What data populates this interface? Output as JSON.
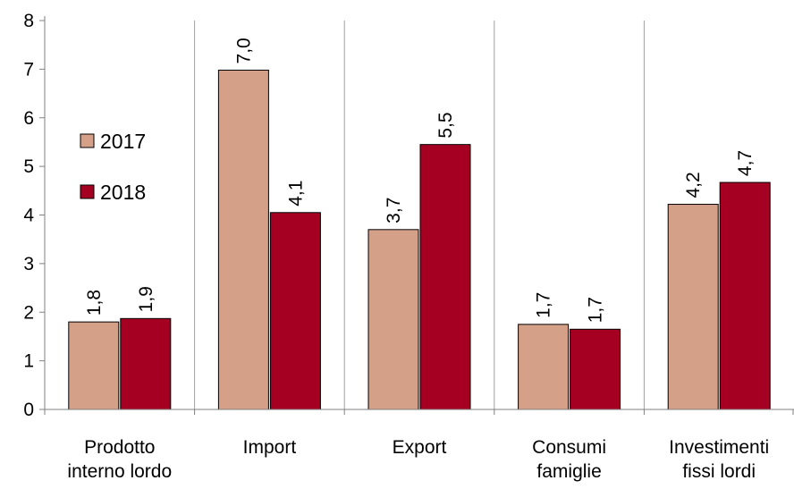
{
  "chart_data": {
    "type": "bar",
    "categories": [
      [
        "Prodotto",
        "interno lordo"
      ],
      [
        "Import"
      ],
      [
        "Export"
      ],
      [
        "Consumi",
        "famiglie"
      ],
      [
        "Investimenti",
        "fissi lordi"
      ]
    ],
    "series": [
      {
        "name": "2017",
        "values": [
          1.8,
          7.0,
          3.7,
          1.7,
          4.2
        ],
        "labels": [
          "1,8",
          "7,0",
          "3,7",
          "1,7",
          "4,2"
        ],
        "color": "#D4A088"
      },
      {
        "name": "2018",
        "values": [
          1.9,
          4.1,
          5.5,
          1.7,
          4.7
        ],
        "labels": [
          "1,9",
          "4,1",
          "5,5",
          "1,7",
          "4,7"
        ],
        "color": "#A50021"
      }
    ],
    "ylim": [
      0,
      8
    ],
    "yticks": [
      0,
      1,
      2,
      3,
      4,
      5,
      6,
      7,
      8
    ],
    "bar_values_precise": [
      [
        1.8,
        6.98,
        3.7,
        1.75,
        4.22
      ],
      [
        1.87,
        4.05,
        5.45,
        1.65,
        4.67
      ]
    ],
    "grid": "vertical separators between categories",
    "legend": "left"
  }
}
